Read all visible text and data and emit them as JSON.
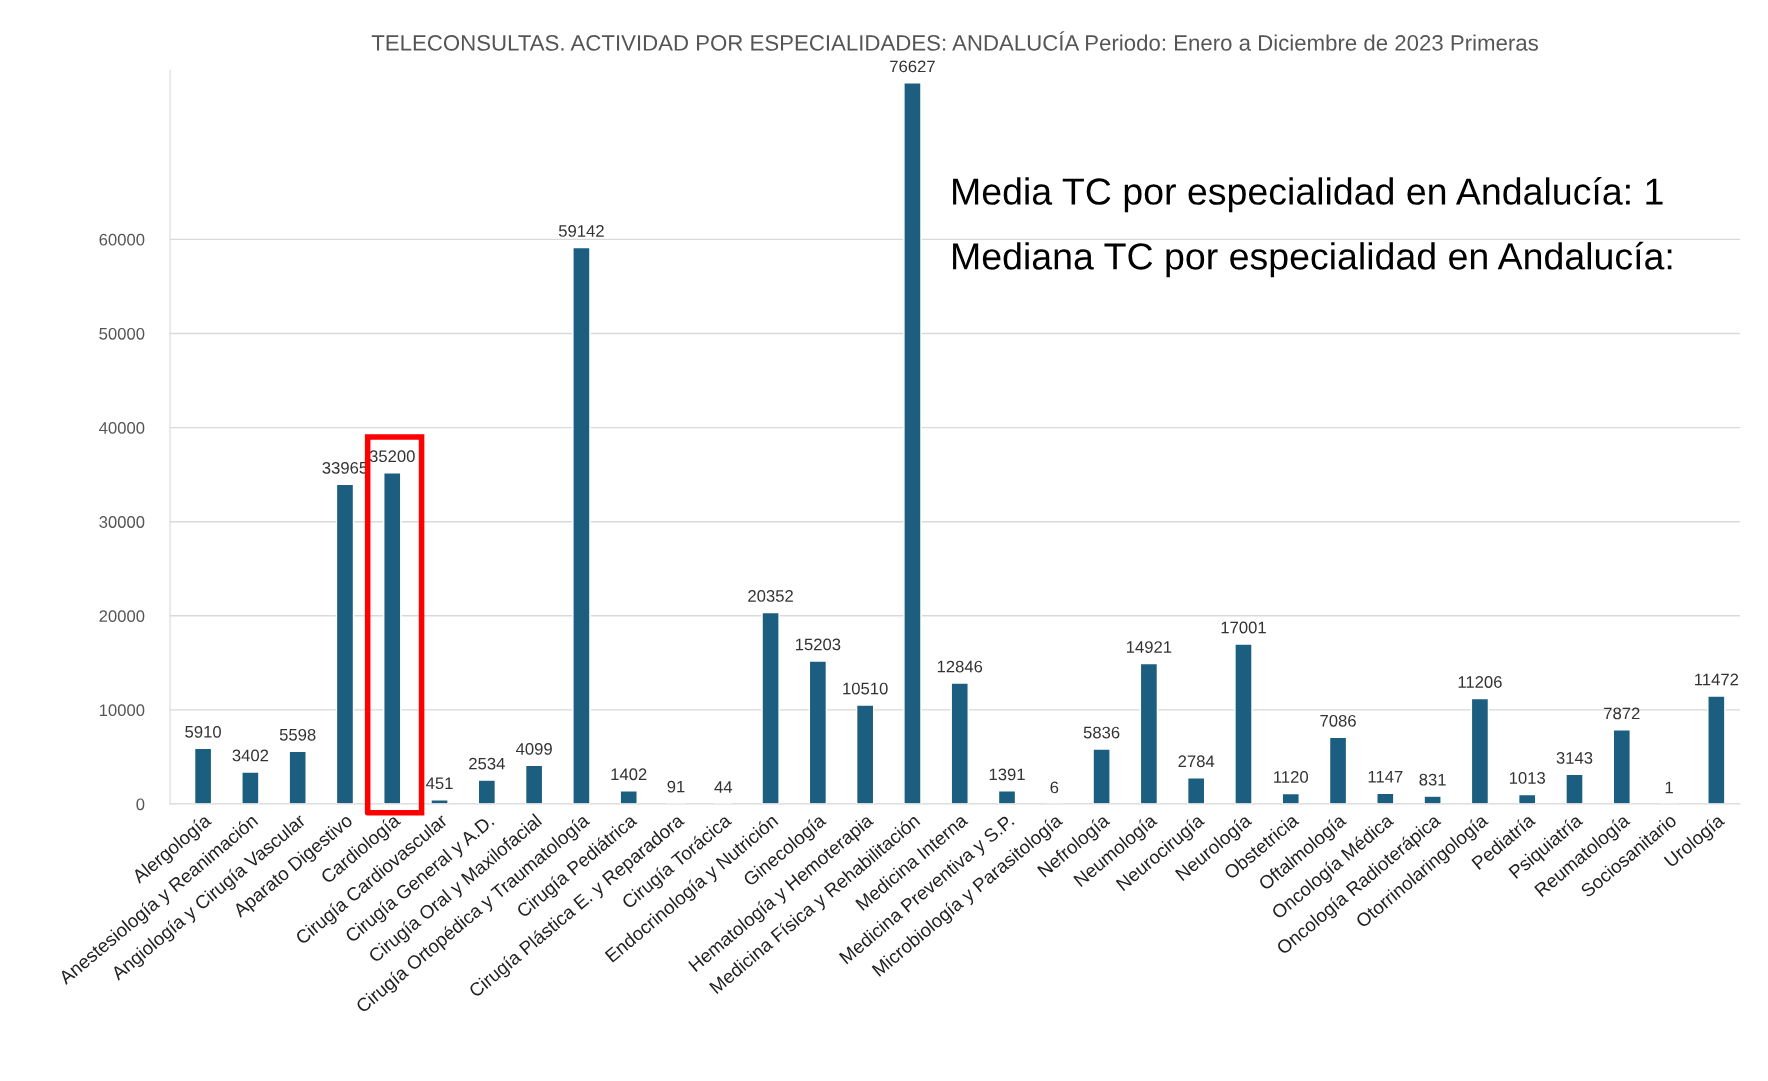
{
  "chart_data": {
    "type": "bar",
    "title": "TELECONSULTAS. ACTIVIDAD POR ESPECIALIDADES: ANDALUCÍA Periodo: Enero a Diciembre de 2023 Primeras",
    "categories": [
      "Alergología",
      "Anestesiología y Reanimación",
      "Angiología y Cirugía Vascular",
      "Aparato Digestivo",
      "Cardiología",
      "Cirugía Cardiovascular",
      "Cirugía General y A.D.",
      "Cirugía Oral y Maxilofacial",
      "Cirugía Ortopédica y Traumatología",
      "Cirugía Pediátrica",
      "Cirugía Plástica E. y Reparadora",
      "Cirugía Torácica",
      "Endocrinología y Nutrición",
      "Ginecología",
      "Hematología y Hemoterapia",
      "Medicina Física y Rehabilitación",
      "Medicina Interna",
      "Medicina Preventiva y S.P.",
      "Microbiología y Parasitología",
      "Nefrología",
      "Neumología",
      "Neurocirugía",
      "Neurología",
      "Obstetricia",
      "Oftalmología",
      "Oncología Médica",
      "Oncología Radioterápica",
      "Otorrinolaringología",
      "Pediatría",
      "Psiquiatría",
      "Reumatología",
      "Sociosanitario",
      "Urología"
    ],
    "values": [
      5910,
      3402,
      5598,
      33965,
      35200,
      451,
      2534,
      4099,
      59142,
      1402,
      91,
      44,
      20352,
      15203,
      10510,
      76627,
      12846,
      1391,
      6,
      5836,
      14921,
      2784,
      17001,
      1120,
      7086,
      1147,
      831,
      11206,
      1013,
      3143,
      7872,
      1,
      11472
    ],
    "color": "#1b5e7f",
    "data_labels": true,
    "ylim": [
      0,
      78000
    ],
    "yticks": [
      0,
      10000,
      20000,
      30000,
      40000,
      50000,
      60000
    ],
    "grid": "y",
    "annotations": [
      "Media TC por especialidad en Andalucía: 1",
      "Mediana TC por especialidad en Andalucía:"
    ]
  }
}
